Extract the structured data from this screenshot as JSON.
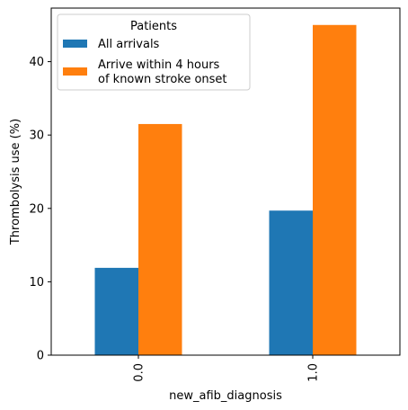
{
  "chart_data": {
    "type": "bar",
    "xlabel": "new_afib_diagnosis",
    "ylabel": "Thrombolysis use (%)",
    "categories": [
      "0.0",
      "1.0"
    ],
    "ylim": [
      0,
      47.3
    ],
    "yticks": [
      0,
      10,
      20,
      30,
      40
    ],
    "legend": {
      "title": "Patients",
      "placement": "upper left"
    },
    "series": [
      {
        "name": "All arrivals",
        "color": "#1f77b4",
        "values": [
          11.9,
          19.7
        ]
      },
      {
        "name": "Arrive within 4 hours\nof known stroke onset",
        "color": "#ff7f0e",
        "values": [
          31.5,
          45.0
        ]
      }
    ]
  }
}
